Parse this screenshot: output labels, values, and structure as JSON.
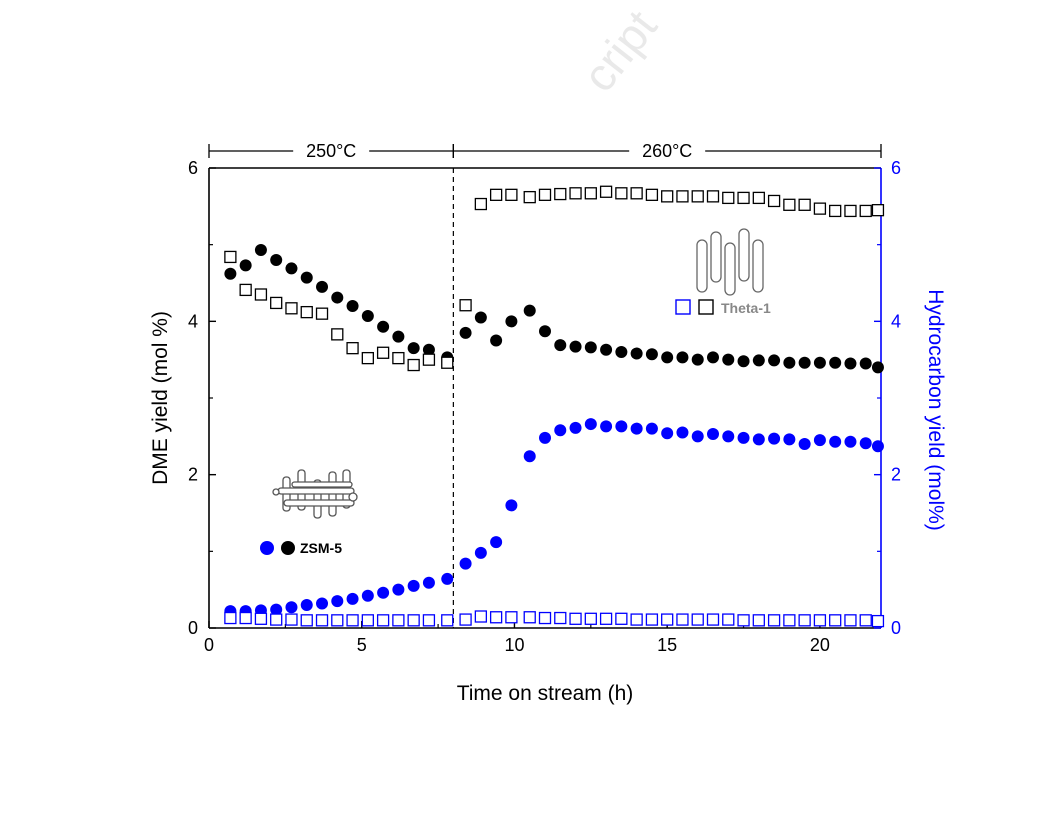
{
  "watermark": "cript",
  "colors": {
    "black": "#000000",
    "blue": "#0000ff",
    "theta_gray": "#888888"
  },
  "chart_data": {
    "type": "scatter",
    "xlabel": "Time on stream (h)",
    "ylabel": "DME yield (mol %)",
    "y2label": "Hydrocarbon yield (mol%)",
    "xlim": [
      0,
      22
    ],
    "ylim": [
      0,
      6
    ],
    "y2lim": [
      0,
      6
    ],
    "xticks": [
      "0",
      "5",
      "10",
      "15",
      "20"
    ],
    "yticks": [
      "0",
      "2",
      "4",
      "6"
    ],
    "y2ticks": [
      "0",
      "2",
      "4",
      "6"
    ],
    "temperature_segments": [
      {
        "label": "250°C",
        "x_start": 0,
        "x_end": 8
      },
      {
        "label": "260°C",
        "x_start": 8,
        "x_end": 22
      }
    ],
    "divider_x": 8,
    "legend": {
      "zsm5": {
        "label": "ZSM-5",
        "icon": "zsm5-framework-icon"
      },
      "theta1": {
        "label": "Theta-1",
        "icon": "theta1-channels-icon"
      }
    },
    "series": [
      {
        "catalyst": "ZSM-5",
        "yield": "DME",
        "marker": "filled-circle",
        "color": "#000000",
        "axis": "left",
        "x": [
          0.7,
          1.2,
          1.7,
          2.2,
          2.7,
          3.2,
          3.7,
          4.2,
          4.7,
          5.2,
          5.7,
          6.2,
          6.7,
          7.2,
          7.8,
          8.4,
          8.9,
          9.4,
          9.9,
          10.5,
          11.0,
          11.5,
          12.0,
          12.5,
          13.0,
          13.5,
          14.0,
          14.5,
          15.0,
          15.5,
          16.0,
          16.5,
          17.0,
          17.5,
          18.0,
          18.5,
          19.0,
          19.5,
          20.0,
          20.5,
          21.0,
          21.5,
          21.9
        ],
        "y": [
          4.62,
          4.73,
          4.93,
          4.8,
          4.69,
          4.57,
          4.45,
          4.31,
          4.2,
          4.07,
          3.93,
          3.8,
          3.65,
          3.63,
          3.53,
          3.85,
          4.05,
          3.75,
          4.0,
          4.14,
          3.87,
          3.69,
          3.67,
          3.66,
          3.63,
          3.6,
          3.58,
          3.57,
          3.53,
          3.53,
          3.5,
          3.53,
          3.5,
          3.48,
          3.49,
          3.49,
          3.46,
          3.46,
          3.46,
          3.46,
          3.45,
          3.45,
          3.4
        ]
      },
      {
        "catalyst": "ZSM-5",
        "yield": "Hydrocarbon",
        "marker": "filled-circle",
        "color": "#0000ff",
        "axis": "right",
        "x": [
          0.7,
          1.2,
          1.7,
          2.2,
          2.7,
          3.2,
          3.7,
          4.2,
          4.7,
          5.2,
          5.7,
          6.2,
          6.7,
          7.2,
          7.8,
          8.4,
          8.9,
          9.4,
          9.9,
          10.5,
          11.0,
          11.5,
          12.0,
          12.5,
          13.0,
          13.5,
          14.0,
          14.5,
          15.0,
          15.5,
          16.0,
          16.5,
          17.0,
          17.5,
          18.0,
          18.5,
          19.0,
          19.5,
          20.0,
          20.5,
          21.0,
          21.5,
          21.9
        ],
        "y": [
          0.22,
          0.22,
          0.23,
          0.24,
          0.27,
          0.3,
          0.32,
          0.35,
          0.38,
          0.42,
          0.46,
          0.5,
          0.55,
          0.59,
          0.64,
          0.84,
          0.98,
          1.12,
          1.6,
          2.24,
          2.48,
          2.58,
          2.61,
          2.66,
          2.63,
          2.63,
          2.6,
          2.6,
          2.54,
          2.55,
          2.5,
          2.53,
          2.5,
          2.48,
          2.46,
          2.47,
          2.46,
          2.4,
          2.45,
          2.43,
          2.43,
          2.41,
          2.37
        ]
      },
      {
        "catalyst": "Theta-1",
        "yield": "DME",
        "marker": "open-square",
        "color": "#000000",
        "axis": "left",
        "x": [
          0.7,
          1.2,
          1.7,
          2.2,
          2.7,
          3.2,
          3.7,
          4.2,
          4.7,
          5.2,
          5.7,
          6.2,
          6.7,
          7.2,
          7.8,
          8.4,
          8.9,
          9.4,
          9.9,
          10.5,
          11.0,
          11.5,
          12.0,
          12.5,
          13.0,
          13.5,
          14.0,
          14.5,
          15.0,
          15.5,
          16.0,
          16.5,
          17.0,
          17.5,
          18.0,
          18.5,
          19.0,
          19.5,
          20.0,
          20.5,
          21.0,
          21.5,
          21.9
        ],
        "y": [
          4.84,
          4.41,
          4.35,
          4.24,
          4.17,
          4.12,
          4.1,
          3.83,
          3.65,
          3.52,
          3.59,
          3.52,
          3.43,
          3.5,
          3.46,
          4.21,
          5.53,
          5.65,
          5.65,
          5.62,
          5.65,
          5.66,
          5.67,
          5.67,
          5.69,
          5.67,
          5.67,
          5.65,
          5.63,
          5.63,
          5.63,
          5.63,
          5.61,
          5.61,
          5.61,
          5.57,
          5.52,
          5.52,
          5.47,
          5.44,
          5.44,
          5.44,
          5.45
        ]
      },
      {
        "catalyst": "Theta-1",
        "yield": "Hydrocarbon",
        "marker": "open-square",
        "color": "#0000ff",
        "axis": "right",
        "x": [
          0.7,
          1.2,
          1.7,
          2.2,
          2.7,
          3.2,
          3.7,
          4.2,
          4.7,
          5.2,
          5.7,
          6.2,
          6.7,
          7.2,
          7.8,
          8.4,
          8.9,
          9.4,
          9.9,
          10.5,
          11.0,
          11.5,
          12.0,
          12.5,
          13.0,
          13.5,
          14.0,
          14.5,
          15.0,
          15.5,
          16.0,
          16.5,
          17.0,
          17.5,
          18.0,
          18.5,
          19.0,
          19.5,
          20.0,
          20.5,
          21.0,
          21.5,
          21.9
        ],
        "y": [
          0.13,
          0.13,
          0.12,
          0.11,
          0.11,
          0.1,
          0.1,
          0.1,
          0.1,
          0.1,
          0.1,
          0.1,
          0.1,
          0.1,
          0.1,
          0.11,
          0.15,
          0.14,
          0.14,
          0.14,
          0.13,
          0.13,
          0.12,
          0.12,
          0.12,
          0.12,
          0.11,
          0.11,
          0.11,
          0.11,
          0.11,
          0.11,
          0.11,
          0.1,
          0.1,
          0.1,
          0.1,
          0.1,
          0.1,
          0.1,
          0.1,
          0.1,
          0.09
        ]
      }
    ]
  }
}
